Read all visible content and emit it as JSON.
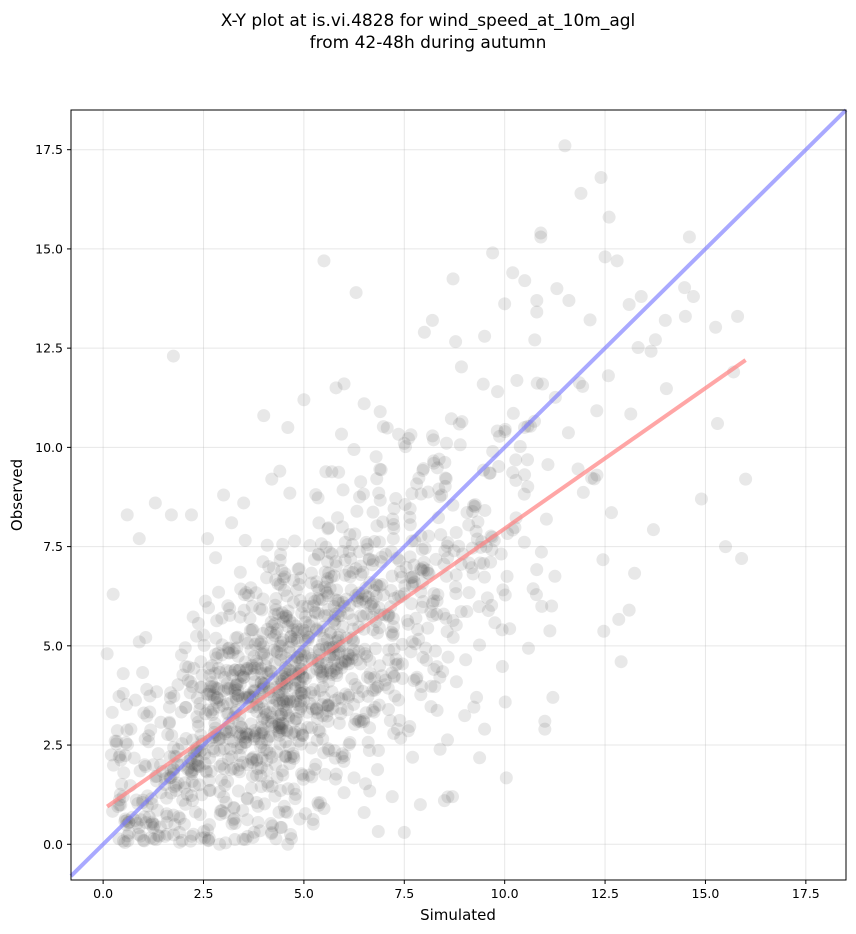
{
  "chart_data": {
    "type": "scatter",
    "title_line1": "X-Y plot at is.vi.4828 for wind_speed_at_10m_agl",
    "title_line2": "from 42-48h during autumn",
    "xlabel": "Simulated",
    "ylabel": "Observed",
    "xlim": [
      -0.8,
      18.5
    ],
    "ylim": [
      -0.9,
      18.5
    ],
    "xticks": [
      "0.0",
      "2.5",
      "5.0",
      "7.5",
      "10.0",
      "12.5",
      "15.0",
      "17.5"
    ],
    "yticks": [
      "0.0",
      "2.5",
      "5.0",
      "7.5",
      "10.0",
      "12.5",
      "15.0",
      "17.5"
    ],
    "grid": true,
    "point_color": "#404040",
    "identity_line_color": "#7b7bff",
    "fit_line_color": "#ff8080",
    "fit_line": {
      "x": [
        0.1,
        16.0
      ],
      "y": [
        0.95,
        12.2
      ]
    },
    "series": [
      {
        "type": "scatter",
        "points": [
          [
            0.1,
            4.8
          ],
          [
            0.25,
            6.3
          ],
          [
            0.6,
            8.3
          ],
          [
            0.9,
            7.7
          ],
          [
            1.3,
            8.6
          ],
          [
            1.7,
            8.3
          ],
          [
            1.75,
            12.3
          ],
          [
            2.2,
            8.3
          ],
          [
            2.6,
            7.7
          ],
          [
            3.0,
            8.8
          ],
          [
            3.2,
            8.1
          ],
          [
            3.5,
            8.6
          ],
          [
            4.0,
            10.8
          ],
          [
            4.2,
            9.2
          ],
          [
            4.4,
            9.4
          ],
          [
            4.6,
            10.5
          ],
          [
            5.0,
            11.2
          ],
          [
            5.5,
            14.7
          ],
          [
            5.8,
            11.5
          ],
          [
            6.0,
            11.6
          ],
          [
            6.3,
            13.9
          ],
          [
            6.5,
            11.1
          ],
          [
            6.9,
            10.9
          ],
          [
            7.5,
            10.1
          ],
          [
            8.0,
            12.9
          ],
          [
            8.2,
            13.2
          ],
          [
            9.5,
            12.8
          ],
          [
            9.7,
            14.9
          ],
          [
            10.2,
            14.4
          ],
          [
            10.5,
            14.2
          ],
          [
            10.8,
            13.7
          ],
          [
            10.9,
            15.3
          ],
          [
            10.9,
            15.4
          ],
          [
            11.3,
            14.0
          ],
          [
            11.5,
            17.6
          ],
          [
            11.6,
            13.7
          ],
          [
            11.9,
            16.4
          ],
          [
            12.4,
            16.8
          ],
          [
            12.6,
            15.8
          ],
          [
            12.5,
            14.8
          ],
          [
            12.8,
            14.7
          ],
          [
            13.1,
            13.6
          ],
          [
            13.4,
            13.8
          ],
          [
            14.0,
            13.2
          ],
          [
            14.5,
            13.3
          ],
          [
            14.6,
            15.3
          ],
          [
            14.7,
            13.8
          ],
          [
            15.3,
            10.6
          ],
          [
            15.5,
            7.5
          ],
          [
            15.7,
            11.9
          ],
          [
            15.8,
            13.3
          ],
          [
            15.9,
            7.2
          ],
          [
            16.0,
            9.2
          ],
          [
            14.9,
            8.7
          ],
          [
            13.1,
            5.9
          ],
          [
            12.9,
            4.6
          ],
          [
            11.2,
            3.7
          ],
          [
            11.0,
            2.9
          ],
          [
            11.0,
            3.1
          ],
          [
            9.5,
            2.9
          ],
          [
            9.3,
            3.7
          ],
          [
            8.7,
            1.2
          ],
          [
            8.5,
            1.1
          ],
          [
            7.9,
            1.0
          ],
          [
            7.5,
            0.3
          ],
          [
            7.2,
            1.2
          ],
          [
            6.5,
            0.8
          ],
          [
            6.0,
            1.3
          ],
          [
            5.5,
            0.9
          ],
          [
            4.6,
            0.0
          ],
          [
            4.2,
            0.3
          ],
          [
            3.6,
            0.2
          ],
          [
            2.9,
            0.0
          ],
          [
            2.2,
            0.2
          ],
          [
            1.9,
            0.3
          ],
          [
            1.4,
            0.2
          ],
          [
            1.0,
            0.1
          ],
          [
            0.8,
            0.6
          ],
          [
            0.5,
            1.2
          ],
          [
            0.4,
            2.2
          ],
          [
            0.5,
            3.8
          ],
          [
            0.5,
            4.3
          ],
          [
            0.9,
            5.1
          ],
          [
            0.3,
            2.6
          ]
        ]
      }
    ]
  }
}
